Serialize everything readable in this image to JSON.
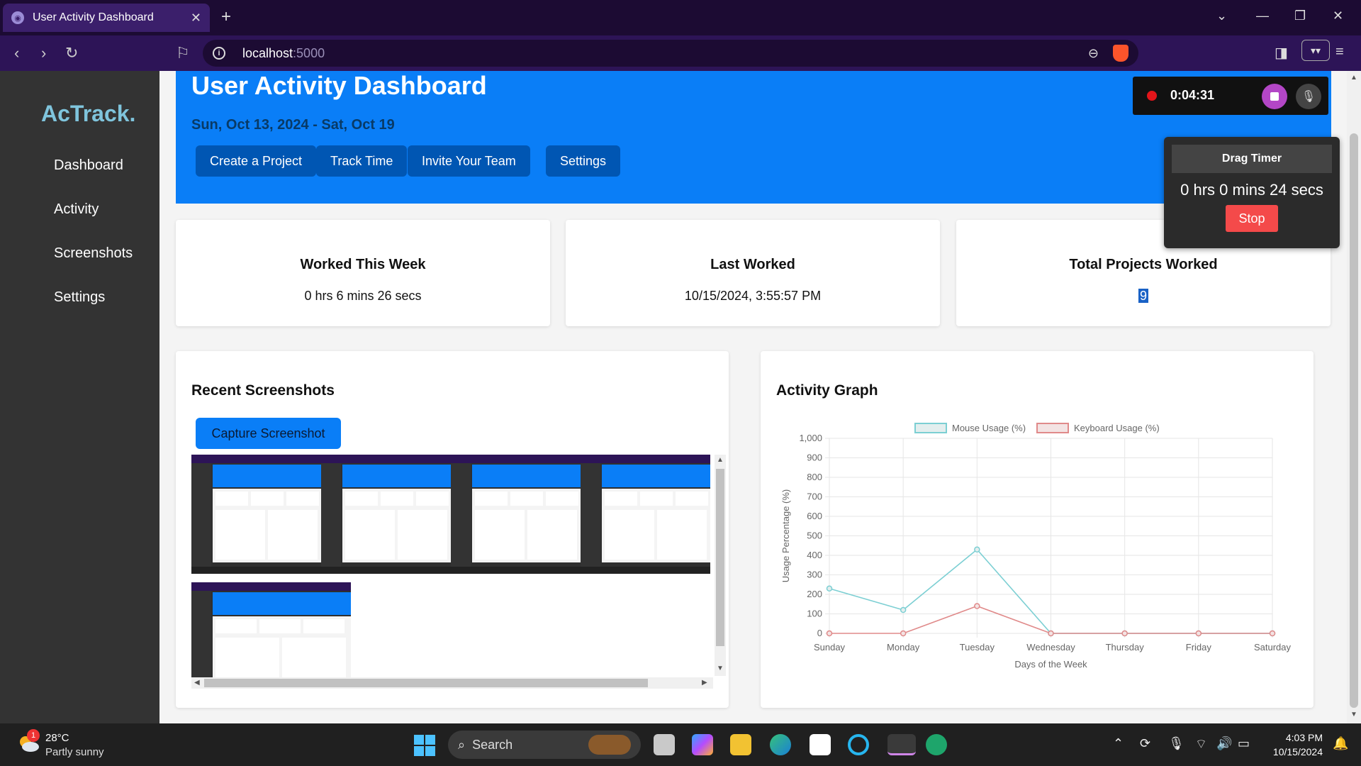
{
  "browser": {
    "tab_title": "User Activity Dashboard",
    "tab_close": "✕",
    "new_tab": "+",
    "url_host": "localhost",
    "url_port": ":5000"
  },
  "sidebar": {
    "logo": "AcTrack.",
    "items": [
      {
        "label": "Dashboard"
      },
      {
        "label": "Activity"
      },
      {
        "label": "Screenshots"
      },
      {
        "label": "Settings"
      }
    ]
  },
  "header": {
    "title": "User Activity Dashboard",
    "date_range": "Sun, Oct 13, 2024 - Sat, Oct 19",
    "buttons": [
      {
        "label": "Create a Project"
      },
      {
        "label": "Track Time"
      },
      {
        "label": "Invite Your Team"
      },
      {
        "label": "Settings"
      }
    ]
  },
  "stats": [
    {
      "title": "Worked This Week",
      "value": "0 hrs 6 mins 26 secs"
    },
    {
      "title": "Last Worked",
      "value": "10/15/2024, 3:55:57 PM"
    },
    {
      "title": "Total Projects Worked",
      "value": "9"
    }
  ],
  "screenshots": {
    "title": "Recent Screenshots",
    "capture_label": "Capture Screenshot"
  },
  "activity": {
    "title": "Activity Graph"
  },
  "recorder": {
    "elapsed": "0:04:31"
  },
  "drag_timer": {
    "title": "Drag Timer",
    "time": "0 hrs 0 mins 24 secs",
    "stop_label": "Stop"
  },
  "taskbar": {
    "temp": "28°C",
    "weather": "Partly sunny",
    "weather_badge": "1",
    "search_label": "Search",
    "time": "4:03 PM",
    "date": "10/15/2024"
  },
  "colors": {
    "accent": "#0a7ef7",
    "sidebar": "#333333",
    "mouse_series": "#7ccfd3",
    "keyboard_series": "#e08a8a"
  },
  "chart_data": {
    "type": "line",
    "title": "",
    "categories": [
      "Sunday",
      "Monday",
      "Tuesday",
      "Wednesday",
      "Thursday",
      "Friday",
      "Saturday"
    ],
    "series": [
      {
        "name": "Mouse Usage (%)",
        "values": [
          230,
          120,
          430,
          0,
          0,
          0,
          0
        ]
      },
      {
        "name": "Keyboard Usage (%)",
        "values": [
          0,
          0,
          140,
          0,
          0,
          0,
          0
        ]
      }
    ],
    "xlabel": "Days of the Week",
    "ylabel": "Usage Percentage (%)",
    "ylim": [
      0,
      1000
    ],
    "yticks": [
      0,
      100,
      200,
      300,
      400,
      500,
      600,
      700,
      800,
      900,
      1000
    ],
    "ytick_labels": [
      "0",
      "100",
      "200",
      "300",
      "400",
      "500",
      "600",
      "700",
      "800",
      "900",
      "1,000"
    ],
    "legend": "top",
    "grid": true
  }
}
